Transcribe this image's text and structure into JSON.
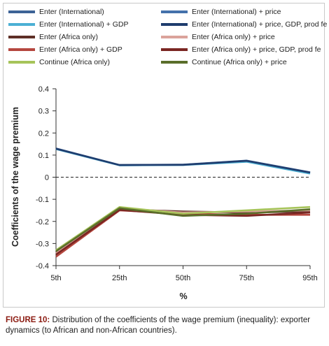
{
  "chart_data": {
    "type": "line",
    "x": [
      "5th",
      "25th",
      "50th",
      "75th",
      "95th"
    ],
    "xlabel": "%",
    "ylabel": "Coefficients of the wage premium",
    "ylim": [
      -0.4,
      0.4
    ],
    "yticks": [
      0.4,
      0.3,
      0.2,
      0.1,
      0,
      -0.1,
      -0.2,
      -0.3,
      -0.4
    ],
    "ytick_labels": [
      "0.4",
      "0.3",
      "0.2",
      "0.1",
      "0",
      "-0.1",
      "-0.2",
      "-0.3",
      "-0.4"
    ],
    "reference_line": {
      "y": 0,
      "style": "dashed"
    },
    "grid": false,
    "legend_position": "top",
    "series": [
      {
        "name": "Enter (International)",
        "color": "#3d6396",
        "values": [
          0.13,
          0.055,
          0.057,
          0.075,
          0.022
        ]
      },
      {
        "name": "Enter (International) + price",
        "color": "#4471ab",
        "values": [
          0.128,
          0.054,
          0.056,
          0.073,
          0.02
        ]
      },
      {
        "name": "Enter (International) + GDP",
        "color": "#4cb0d4",
        "values": [
          0.127,
          0.054,
          0.055,
          0.07,
          0.016
        ]
      },
      {
        "name": "Enter (International) + price, GDP, prod fe",
        "color": "#1f3d6e",
        "values": [
          0.129,
          0.055,
          0.056,
          0.074,
          0.021
        ]
      },
      {
        "name": "Enter (Africa only)",
        "color": "#5e2f26",
        "values": [
          -0.34,
          -0.145,
          -0.155,
          -0.16,
          -0.155
        ]
      },
      {
        "name": "Enter (Africa only) + price",
        "color": "#dba39b",
        "values": [
          -0.345,
          -0.14,
          -0.16,
          -0.155,
          -0.15
        ]
      },
      {
        "name": "Enter (Africa only) + GDP",
        "color": "#b5473f",
        "values": [
          -0.36,
          -0.15,
          -0.165,
          -0.17,
          -0.17
        ]
      },
      {
        "name": "Enter (Africa only) + price, GDP, prod fe",
        "color": "#7a2622",
        "values": [
          -0.35,
          -0.148,
          -0.17,
          -0.175,
          -0.16
        ]
      },
      {
        "name": "Continue (Africa only)",
        "color": "#a6c45a",
        "values": [
          -0.33,
          -0.135,
          -0.165,
          -0.15,
          -0.135
        ]
      },
      {
        "name": "Continue (Africa only) + price",
        "color": "#5a6e2a",
        "values": [
          -0.335,
          -0.14,
          -0.175,
          -0.165,
          -0.145
        ]
      }
    ]
  },
  "caption": {
    "label": "FIGURE 10:",
    "text": " Distribution of the coefficients of the wage premium (inequality): exporter dynamics (to African and non-African countries)."
  }
}
